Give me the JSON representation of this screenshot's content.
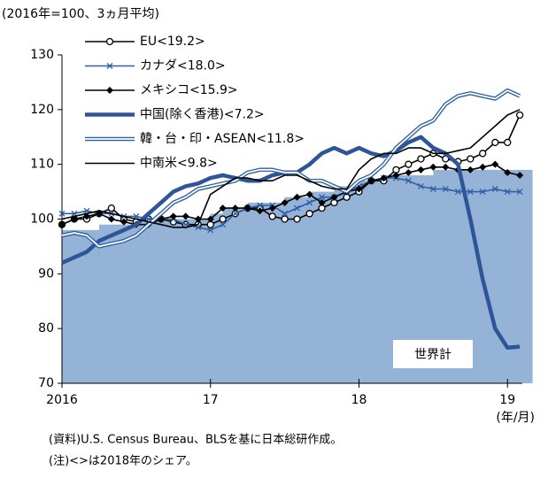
{
  "chart_data": {
    "type": "line",
    "subtitle": "(2016年=100、3ヵ月平均)",
    "x_unit": "(年/月)",
    "notes": [
      "(資料)U.S. Census Bureau、BLSを基に日本総研作成。",
      "(注)<>は2018年のシェア。"
    ],
    "x": [
      2016,
      2016.083,
      2016.167,
      2016.25,
      2016.333,
      2016.417,
      2016.5,
      2016.583,
      2016.667,
      2016.75,
      2016.833,
      2016.917,
      2017,
      2017.083,
      2017.167,
      2017.25,
      2017.333,
      2017.417,
      2017.5,
      2017.583,
      2017.667,
      2017.75,
      2017.833,
      2017.917,
      2018,
      2018.083,
      2018.167,
      2018.25,
      2018.333,
      2018.417,
      2018.5,
      2018.583,
      2018.667,
      2018.75,
      2018.833,
      2018.917,
      2019,
      2019.083
    ],
    "xlim": [
      2016,
      2019.1
    ],
    "xticks": [
      {
        "value": 2016,
        "label": "2016"
      },
      {
        "value": 2017,
        "label": "17"
      },
      {
        "value": 2018,
        "label": "18"
      },
      {
        "value": 2019,
        "label": "19"
      }
    ],
    "ylim": [
      70,
      130
    ],
    "yticks": [
      70,
      80,
      90,
      100,
      110,
      120,
      130
    ],
    "area": {
      "name": "世界計",
      "color": "#95b3d7",
      "values": [
        98,
        98,
        98,
        99,
        99,
        99,
        100,
        100,
        100,
        100,
        100,
        100,
        101,
        102,
        102,
        103,
        103,
        103,
        104,
        104,
        105,
        105,
        106,
        106,
        107,
        107,
        108,
        108,
        108,
        108,
        109,
        109,
        109,
        109,
        109,
        109,
        109,
        109
      ]
    },
    "series": [
      {
        "name": "EU<19.2>",
        "color": "#000000",
        "style": "thin",
        "marker": "circle",
        "values": [
          99,
          100,
          100,
          101,
          102,
          100,
          99.5,
          100,
          100,
          99.5,
          99,
          99,
          99,
          100,
          101,
          102,
          102,
          100.5,
          100,
          100,
          101,
          102,
          103,
          104,
          105,
          107,
          107,
          109,
          110,
          111,
          112,
          111,
          110.5,
          111,
          112,
          114,
          114,
          119
        ]
      },
      {
        "name": "カナダ<18.0>",
        "color": "#2e5fa3",
        "style": "thin",
        "marker": "x",
        "values": [
          101,
          101,
          101.5,
          101,
          101,
          100.5,
          100.5,
          100,
          100,
          100,
          99,
          98.5,
          98,
          99,
          101,
          102,
          102.5,
          102.5,
          101,
          102,
          103,
          104,
          104,
          105,
          106,
          107,
          107.5,
          107.5,
          107,
          106,
          105.5,
          105.5,
          105,
          105,
          105,
          105.5,
          105,
          105
        ]
      },
      {
        "name": "メキシコ<15.9>",
        "color": "#000000",
        "style": "thin",
        "marker": "diamond",
        "values": [
          99,
          100,
          100.5,
          101,
          100,
          99.5,
          99,
          99,
          100,
          100.5,
          100.5,
          100,
          100,
          102,
          102,
          102,
          101.5,
          102,
          103,
          104,
          104.5,
          103,
          104,
          105,
          105.5,
          107,
          107.5,
          108,
          108.5,
          109,
          109.5,
          109.5,
          109,
          109,
          109.5,
          110,
          108.5,
          108
        ]
      },
      {
        "name": "中国(除く香港)<7.2>",
        "color": "#2e5597",
        "style": "thick",
        "marker": null,
        "values": [
          92,
          93,
          94,
          96,
          97,
          98,
          99,
          101,
          103,
          105,
          106,
          106.5,
          107.5,
          108,
          107.5,
          107,
          107,
          108,
          108.5,
          108.5,
          110,
          112,
          113,
          112,
          113,
          112,
          111.5,
          112.5,
          114,
          115,
          113,
          112,
          110,
          100,
          89,
          80,
          76.5,
          76.7
        ]
      },
      {
        "name": "韓・台・印・ASEAN<11.8>",
        "color": "#2e5fa3",
        "style": "double",
        "marker": null,
        "values": [
          97,
          97.5,
          97,
          95,
          95.5,
          96,
          97,
          99,
          101,
          103,
          104,
          105.5,
          106,
          106.5,
          107,
          108.5,
          109,
          109,
          108.5,
          108.5,
          107,
          107,
          106,
          105,
          107,
          108,
          110,
          113,
          115,
          117,
          118,
          121,
          122.5,
          123,
          122.5,
          122,
          123.5,
          122.5
        ]
      },
      {
        "name": "中南米<9.8>",
        "color": "#000000",
        "style": "thin",
        "marker": null,
        "values": [
          100,
          100.5,
          101,
          101.5,
          101,
          100.5,
          100,
          99.5,
          99,
          98.5,
          98.5,
          99,
          104.5,
          106,
          107.5,
          107.5,
          107,
          107,
          108,
          108,
          107,
          106,
          105.5,
          105.5,
          109,
          111,
          112,
          112,
          113,
          113,
          112,
          112,
          112.5,
          113,
          115,
          117,
          119,
          120
        ]
      }
    ]
  }
}
